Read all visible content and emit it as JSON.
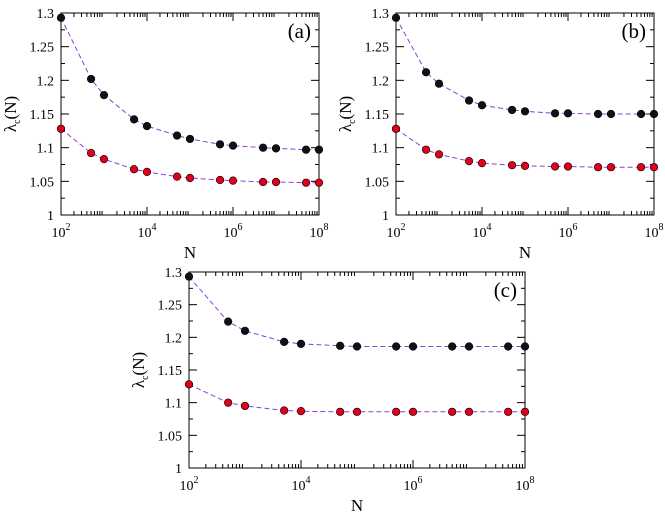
{
  "colors": {
    "series_black": "#111111",
    "series_red": "#e0001b",
    "dashed_line": "#8a3fd6"
  },
  "chart_data": [
    {
      "type": "scatter",
      "panel_label": "(a)",
      "xlabel": "N",
      "ylabel": "λ",
      "ylabel_sub": "c",
      "ylabel_suffix": "(N)",
      "xscale": "log",
      "xlim": [
        100,
        100000000
      ],
      "ylim": [
        1,
        1.3
      ],
      "x_ticks": [
        {
          "base": "10",
          "exp": "2"
        },
        {
          "base": "10",
          "exp": "4"
        },
        {
          "base": "10",
          "exp": "6"
        },
        {
          "base": "10",
          "exp": "8"
        }
      ],
      "y_ticks": [
        "1",
        "1.05",
        "1.1",
        "1.15",
        "1.2",
        "1.25",
        "1.3"
      ],
      "series": [
        {
          "name": "upper",
          "color": "#111111",
          "x": [
            100,
            500,
            1000,
            5000,
            10000,
            50000,
            100000,
            500000,
            1000000,
            5000000,
            10000000,
            50000000,
            100000000
          ],
          "values": [
            1.293,
            1.202,
            1.178,
            1.142,
            1.132,
            1.118,
            1.113,
            1.105,
            1.103,
            1.1,
            1.099,
            1.097,
            1.097
          ]
        },
        {
          "name": "lower",
          "color": "#e0001b",
          "x": [
            100,
            500,
            1000,
            5000,
            10000,
            50000,
            100000,
            500000,
            1000000,
            5000000,
            10000000,
            50000000,
            100000000
          ],
          "values": [
            1.128,
            1.092,
            1.083,
            1.068,
            1.064,
            1.057,
            1.055,
            1.052,
            1.051,
            1.049,
            1.049,
            1.048,
            1.048
          ]
        }
      ]
    },
    {
      "type": "scatter",
      "panel_label": "(b)",
      "xlabel": "N",
      "ylabel": "λ",
      "ylabel_sub": "c",
      "ylabel_suffix": "(N)",
      "xscale": "log",
      "xlim": [
        100,
        100000000
      ],
      "ylim": [
        1,
        1.3
      ],
      "x_ticks": [
        {
          "base": "10",
          "exp": "2"
        },
        {
          "base": "10",
          "exp": "4"
        },
        {
          "base": "10",
          "exp": "6"
        },
        {
          "base": "10",
          "exp": "8"
        }
      ],
      "y_ticks": [
        "1",
        "1.05",
        "1.1",
        "1.15",
        "1.2",
        "1.25",
        "1.3"
      ],
      "series": [
        {
          "name": "upper",
          "color": "#111111",
          "x": [
            100,
            500,
            1000,
            5000,
            10000,
            50000,
            100000,
            500000,
            1000000,
            5000000,
            10000000,
            50000000,
            100000000
          ],
          "values": [
            1.293,
            1.212,
            1.195,
            1.17,
            1.163,
            1.156,
            1.154,
            1.151,
            1.151,
            1.15,
            1.15,
            1.15,
            1.15
          ]
        },
        {
          "name": "lower",
          "color": "#e0001b",
          "x": [
            100,
            500,
            1000,
            5000,
            10000,
            50000,
            100000,
            500000,
            1000000,
            5000000,
            10000000,
            50000000,
            100000000
          ],
          "values": [
            1.128,
            1.097,
            1.09,
            1.08,
            1.077,
            1.074,
            1.073,
            1.072,
            1.072,
            1.071,
            1.071,
            1.071,
            1.071
          ]
        }
      ]
    },
    {
      "type": "scatter",
      "panel_label": "(c)",
      "xlabel": "N",
      "ylabel": "λ",
      "ylabel_sub": "c",
      "ylabel_suffix": "(N)",
      "xscale": "log",
      "xlim": [
        100,
        100000000
      ],
      "ylim": [
        1,
        1.3
      ],
      "x_ticks": [
        {
          "base": "10",
          "exp": "2"
        },
        {
          "base": "10",
          "exp": "4"
        },
        {
          "base": "10",
          "exp": "6"
        },
        {
          "base": "10",
          "exp": "8"
        }
      ],
      "y_ticks": [
        "1",
        "1.05",
        "1.1",
        "1.15",
        "1.2",
        "1.25",
        "1.3"
      ],
      "series": [
        {
          "name": "upper",
          "color": "#111111",
          "x": [
            100,
            500,
            1000,
            5000,
            10000,
            50000,
            100000,
            500000,
            1000000,
            5000000,
            10000000,
            50000000,
            100000000
          ],
          "values": [
            1.293,
            1.224,
            1.21,
            1.193,
            1.19,
            1.187,
            1.186,
            1.186,
            1.186,
            1.186,
            1.186,
            1.186,
            1.186
          ]
        },
        {
          "name": "lower",
          "color": "#e0001b",
          "x": [
            100,
            500,
            1000,
            5000,
            10000,
            50000,
            100000,
            500000,
            1000000,
            5000000,
            10000000,
            50000000,
            100000000
          ],
          "values": [
            1.128,
            1.1,
            1.095,
            1.088,
            1.087,
            1.086,
            1.086,
            1.086,
            1.086,
            1.086,
            1.086,
            1.086,
            1.086
          ]
        }
      ]
    }
  ]
}
